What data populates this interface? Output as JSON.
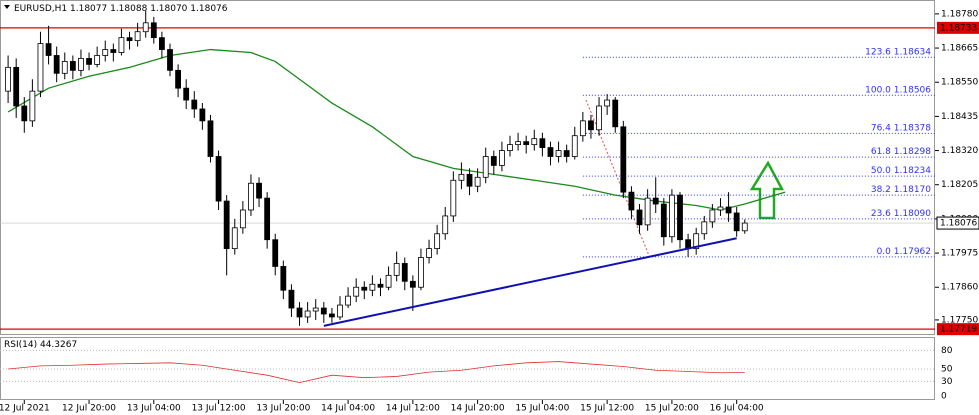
{
  "header": {
    "symbol": "EURUSD,H1",
    "prices": [
      {
        "value": 1.18077,
        "label": "1.18077"
      },
      {
        "value": 1.18088,
        "label": "1.18088"
      },
      {
        "value": 1.1807,
        "label": "1.18070"
      },
      {
        "value": 1.18076,
        "label": "1.18076"
      }
    ]
  },
  "chart_data": {
    "type": "candlestick",
    "ohlc": [
      [
        1.1852,
        1.1864,
        1.1848,
        1.186
      ],
      [
        1.186,
        1.1863,
        1.1843,
        1.1847
      ],
      [
        1.1847,
        1.185,
        1.1838,
        1.1842
      ],
      [
        1.1842,
        1.1856,
        1.184,
        1.1852
      ],
      [
        1.1852,
        1.1872,
        1.185,
        1.1868
      ],
      [
        1.1868,
        1.1874,
        1.1861,
        1.1864
      ],
      [
        1.1864,
        1.1867,
        1.1855,
        1.1858
      ],
      [
        1.1858,
        1.1865,
        1.1856,
        1.1862
      ],
      [
        1.1862,
        1.1864,
        1.1856,
        1.1859
      ],
      [
        1.1859,
        1.1866,
        1.1857,
        1.1863
      ],
      [
        1.1863,
        1.1865,
        1.1859,
        1.1861
      ],
      [
        1.1861,
        1.1867,
        1.186,
        1.1864
      ],
      [
        1.1864,
        1.1869,
        1.1862,
        1.1866
      ],
      [
        1.1866,
        1.1868,
        1.1862,
        1.1865
      ],
      [
        1.1865,
        1.1873,
        1.1864,
        1.187
      ],
      [
        1.187,
        1.1872,
        1.1866,
        1.1869
      ],
      [
        1.1869,
        1.1875,
        1.1867,
        1.1872
      ],
      [
        1.1872,
        1.1879,
        1.187,
        1.1875
      ],
      [
        1.1875,
        1.1877,
        1.1868,
        1.187
      ],
      [
        1.187,
        1.1872,
        1.1863,
        1.1866
      ],
      [
        1.1866,
        1.1868,
        1.1857,
        1.1859
      ],
      [
        1.1859,
        1.1861,
        1.185,
        1.1853
      ],
      [
        1.1853,
        1.1856,
        1.1846,
        1.1849
      ],
      [
        1.1849,
        1.1852,
        1.1843,
        1.1846
      ],
      [
        1.1846,
        1.1848,
        1.1839,
        1.1842
      ],
      [
        1.1842,
        1.1844,
        1.1828,
        1.183
      ],
      [
        1.183,
        1.1832,
        1.1812,
        1.1815
      ],
      [
        1.1815,
        1.1817,
        1.179,
        1.1799
      ],
      [
        1.1799,
        1.1809,
        1.1797,
        1.1806
      ],
      [
        1.1806,
        1.1815,
        1.1804,
        1.1812
      ],
      [
        1.1812,
        1.1824,
        1.181,
        1.1821
      ],
      [
        1.1821,
        1.1823,
        1.1813,
        1.1816
      ],
      [
        1.1816,
        1.1818,
        1.1799,
        1.1802
      ],
      [
        1.1802,
        1.1804,
        1.179,
        1.1793
      ],
      [
        1.1793,
        1.1795,
        1.1782,
        1.1785
      ],
      [
        1.1785,
        1.1787,
        1.1776,
        1.1779
      ],
      [
        1.1779,
        1.1781,
        1.1773,
        1.1776
      ],
      [
        1.1776,
        1.1781,
        1.1774,
        1.1778
      ],
      [
        1.1778,
        1.1782,
        1.1775,
        1.1779
      ],
      [
        1.1779,
        1.1781,
        1.1774,
        1.1777
      ],
      [
        1.1777,
        1.1779,
        1.1774,
        1.1776
      ],
      [
        1.1776,
        1.1783,
        1.1775,
        1.178
      ],
      [
        1.178,
        1.1786,
        1.1779,
        1.1783
      ],
      [
        1.1783,
        1.1789,
        1.1781,
        1.1786
      ],
      [
        1.1786,
        1.1788,
        1.1782,
        1.1785
      ],
      [
        1.1785,
        1.179,
        1.1783,
        1.1787
      ],
      [
        1.1787,
        1.1789,
        1.1783,
        1.1786
      ],
      [
        1.1786,
        1.1793,
        1.1785,
        1.179
      ],
      [
        1.179,
        1.1798,
        1.1788,
        1.1794
      ],
      [
        1.1794,
        1.1796,
        1.1785,
        1.1788
      ],
      [
        1.1788,
        1.179,
        1.1778,
        1.1786
      ],
      [
        1.1786,
        1.1799,
        1.1785,
        1.1796
      ],
      [
        1.1796,
        1.1802,
        1.1794,
        1.1799
      ],
      [
        1.1799,
        1.1807,
        1.1797,
        1.1804
      ],
      [
        1.1804,
        1.1813,
        1.1802,
        1.181
      ],
      [
        1.181,
        1.1825,
        1.1808,
        1.1822
      ],
      [
        1.1822,
        1.1828,
        1.1819,
        1.1824
      ],
      [
        1.1824,
        1.1826,
        1.1817,
        1.182
      ],
      [
        1.182,
        1.1826,
        1.1818,
        1.1823
      ],
      [
        1.1823,
        1.1833,
        1.1821,
        1.183
      ],
      [
        1.183,
        1.1832,
        1.1824,
        1.1827
      ],
      [
        1.1827,
        1.1835,
        1.1825,
        1.1832
      ],
      [
        1.1832,
        1.1837,
        1.183,
        1.1834
      ],
      [
        1.1834,
        1.1838,
        1.1832,
        1.1835
      ],
      [
        1.1835,
        1.1837,
        1.1831,
        1.1834
      ],
      [
        1.1834,
        1.1839,
        1.1832,
        1.1836
      ],
      [
        1.1836,
        1.1838,
        1.183,
        1.1833
      ],
      [
        1.1833,
        1.1835,
        1.1827,
        1.183
      ],
      [
        1.183,
        1.1835,
        1.1828,
        1.1832
      ],
      [
        1.1832,
        1.1834,
        1.1828,
        1.183
      ],
      [
        1.183,
        1.184,
        1.1829,
        1.1837
      ],
      [
        1.1837,
        1.1845,
        1.1835,
        1.1842
      ],
      [
        1.1842,
        1.1844,
        1.1836,
        1.1839
      ],
      [
        1.1839,
        1.185,
        1.1837,
        1.1847
      ],
      [
        1.1847,
        1.1851,
        1.1844,
        1.1849
      ],
      [
        1.1849,
        1.185,
        1.1838,
        1.184
      ],
      [
        1.184,
        1.1842,
        1.1816,
        1.1818
      ],
      [
        1.1818,
        1.182,
        1.1809,
        1.1812
      ],
      [
        1.1812,
        1.1814,
        1.1804,
        1.1807
      ],
      [
        1.1807,
        1.1819,
        1.1805,
        1.1816
      ],
      [
        1.1816,
        1.1823,
        1.1811,
        1.1814
      ],
      [
        1.1814,
        1.1816,
        1.18,
        1.1803
      ],
      [
        1.1803,
        1.1819,
        1.1801,
        1.1817
      ],
      [
        1.1817,
        1.1818,
        1.1799,
        1.1802
      ],
      [
        1.1802,
        1.1804,
        1.17962,
        1.1799
      ],
      [
        1.1799,
        1.1806,
        1.1797,
        1.1804
      ],
      [
        1.1804,
        1.181,
        1.1802,
        1.1808
      ],
      [
        1.1808,
        1.1814,
        1.1806,
        1.1812
      ],
      [
        1.1812,
        1.1816,
        1.181,
        1.1813
      ],
      [
        1.1813,
        1.1818,
        1.1808,
        1.1811
      ],
      [
        1.1811,
        1.1813,
        1.1803,
        1.1805
      ],
      [
        1.1805,
        1.18088,
        1.1804,
        1.18076
      ]
    ],
    "up_color": "#ffffff",
    "down_color": "#000000",
    "xlim": [
      -1,
      114.5
    ],
    "xticks": [
      {
        "value": 2,
        "label": "12 Jul 2021"
      },
      {
        "value": 10,
        "label": "12 Jul 20:00"
      },
      {
        "value": 18,
        "label": "13 Jul 04:00"
      },
      {
        "value": 26,
        "label": "13 Jul 12:00"
      },
      {
        "value": 34,
        "label": "13 Jul 20:00"
      },
      {
        "value": 42,
        "label": "14 Jul 04:00"
      },
      {
        "value": 50,
        "label": "14 Jul 12:00"
      },
      {
        "value": 58,
        "label": "14 Jul 20:00"
      },
      {
        "value": 66,
        "label": "15 Jul 04:00"
      },
      {
        "value": 74,
        "label": "15 Jul 12:00"
      },
      {
        "value": 82,
        "label": "15 Jul 20:00"
      },
      {
        "value": 90,
        "label": "16 Jul 04:00"
      }
    ],
    "ylim": [
      1.17706,
      1.1882
    ],
    "yticks": [
      {
        "value": 1.1775,
        "label": "1.17750"
      },
      {
        "value": 1.1786,
        "label": "1.17860"
      },
      {
        "value": 1.17975,
        "label": "1.17975"
      },
      {
        "value": 1.1809,
        "label": "1.18090"
      },
      {
        "value": 1.18205,
        "label": "1.18205"
      },
      {
        "value": 1.1832,
        "label": "1.18320"
      },
      {
        "value": 1.18435,
        "label": "1.18435"
      },
      {
        "value": 1.1855,
        "label": "1.18550"
      },
      {
        "value": 1.18665,
        "label": "1.18665"
      },
      {
        "value": 1.1878,
        "label": "1.18780"
      }
    ],
    "moving_average": {
      "color": "#1a8a1a",
      "x": [
        0,
        5,
        10,
        15,
        20,
        25,
        30,
        33,
        36,
        40,
        45,
        50,
        55,
        60,
        65,
        70,
        75,
        80,
        85,
        88,
        91,
        96
      ],
      "values": [
        1.1845,
        1.1853,
        1.1857,
        1.186,
        1.1864,
        1.1866,
        1.1865,
        1.1862,
        1.1856,
        1.1848,
        1.184,
        1.183,
        1.1826,
        1.1824,
        1.1822,
        1.182,
        1.1817,
        1.1815,
        1.18135,
        1.1812,
        1.1814,
        1.1818
      ]
    },
    "trendline": {
      "color": "#1010b0",
      "x": [
        39,
        90
      ],
      "values": [
        1.1773,
        1.18025
      ]
    },
    "levels": [
      {
        "value": 1.18733,
        "label": "1.18733",
        "color": "#e00000"
      },
      {
        "value": 1.17719,
        "label": "1.17719",
        "color": "#e00000"
      }
    ],
    "current_price": {
      "value": 1.18076,
      "label": "1.18076"
    },
    "fibonacci": {
      "color": "#3030ff",
      "x_start": 71,
      "levels": [
        {
          "level": {
            "value": 123.6,
            "label": "123.6"
          },
          "price": {
            "value": 1.18634,
            "label": "1.18634"
          }
        },
        {
          "level": {
            "value": 100,
            "label": "100.0"
          },
          "price": {
            "value": 1.18506,
            "label": "1.18506"
          }
        },
        {
          "level": {
            "value": 76.4,
            "label": "76.4"
          },
          "price": {
            "value": 1.18378,
            "label": "1.18378"
          }
        },
        {
          "level": {
            "value": 61.8,
            "label": "61.8"
          },
          "price": {
            "value": 1.18298,
            "label": "1.18298"
          }
        },
        {
          "level": {
            "value": 50,
            "label": "50.0"
          },
          "price": {
            "value": 1.18234,
            "label": "1.18234"
          }
        },
        {
          "level": {
            "value": 38.2,
            "label": "38.2"
          },
          "price": {
            "value": 1.1817,
            "label": "1.18170"
          }
        },
        {
          "level": {
            "value": 23.6,
            "label": "23.6"
          },
          "price": {
            "value": 1.1809,
            "label": "1.18090"
          }
        },
        {
          "level": {
            "value": 0,
            "label": "0.0"
          },
          "price": {
            "value": 1.17962,
            "label": "1.17962"
          }
        }
      ]
    },
    "rsi": {
      "title": "RSI(14)",
      "color": "#e03030",
      "x": [
        0,
        4,
        8,
        12,
        16,
        20,
        24,
        28,
        32,
        36,
        40,
        44,
        48,
        52,
        56,
        60,
        64,
        68,
        72,
        76,
        80,
        84,
        88,
        91
      ],
      "values": [
        50,
        55,
        56,
        58,
        59,
        60,
        56,
        48,
        40,
        28,
        40,
        36,
        38,
        45,
        48,
        55,
        60,
        62,
        58,
        54,
        48,
        46,
        44,
        44.3267
      ],
      "ylim": [
        0,
        100
      ],
      "yticks": [
        0,
        30,
        50,
        80
      ]
    }
  }
}
